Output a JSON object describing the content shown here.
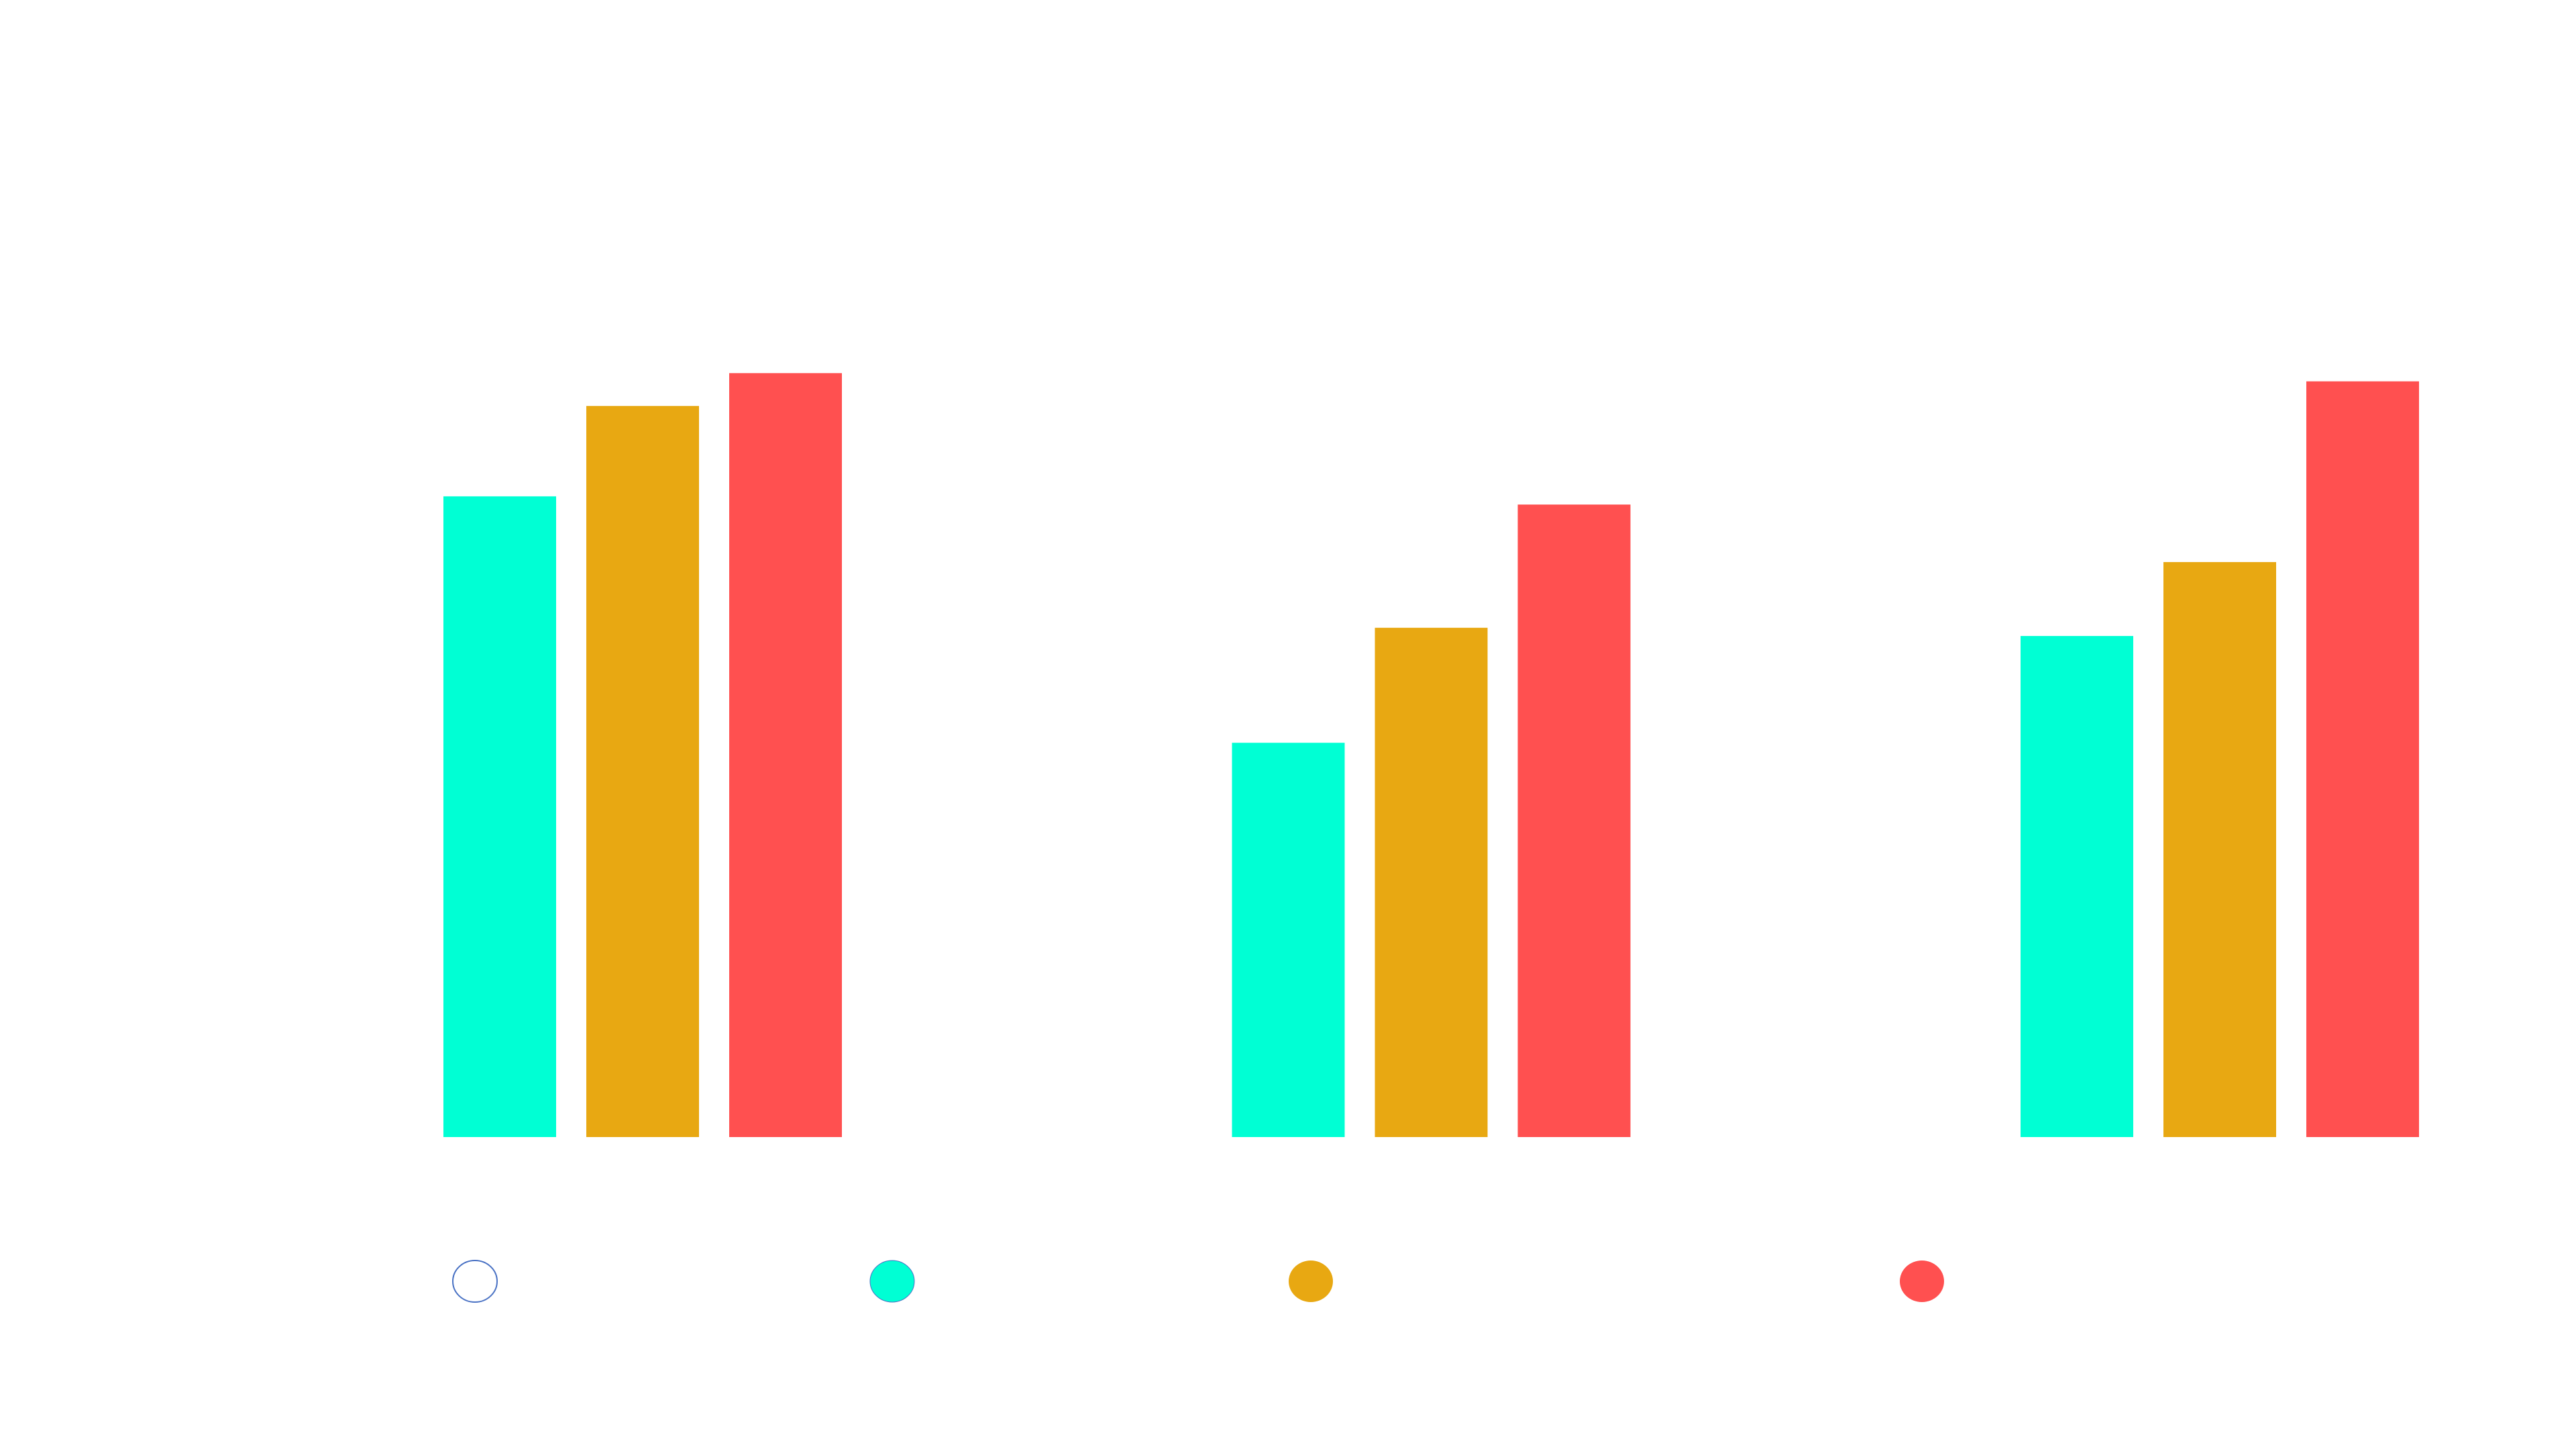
{
  "chart_data": {
    "type": "bar",
    "categories": [
      null,
      null,
      null
    ],
    "series": [
      {
        "color": "#00ffd4",
        "values": [
          78,
          48,
          61
        ]
      },
      {
        "color": "#e8a812",
        "values": [
          89,
          62,
          70
        ]
      },
      {
        "color": "#ff5050",
        "values": [
          93,
          77,
          92
        ]
      }
    ],
    "ylim": [
      0,
      100
    ]
  }
}
